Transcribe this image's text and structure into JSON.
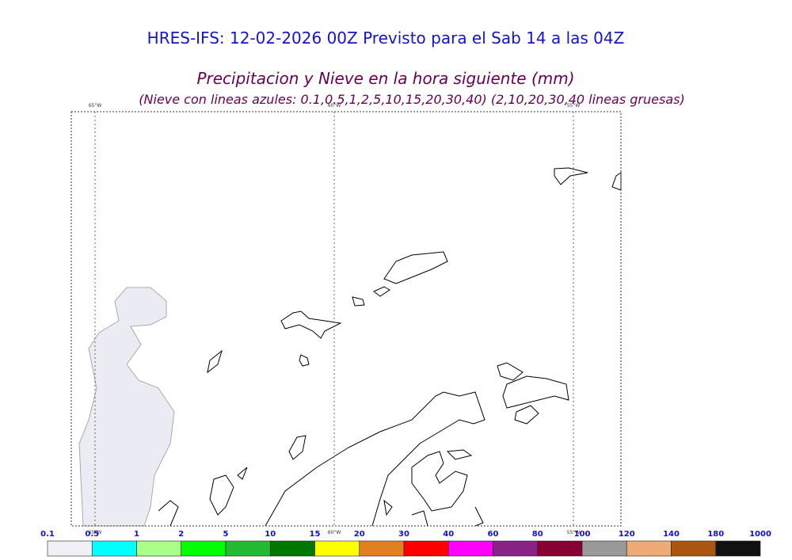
{
  "header": {
    "title": "HRES-IFS: 12-02-2026 00Z Previsto para el Sab 14 a las 04Z",
    "subtitle": "Precipitacion y Nieve en la hora siguiente (mm)",
    "note": "(Nieve con lineas azules: 0.1,0.5,1,2,5,10,15,20,30,40)  (2,10,20,30,40 lineas gruesas)"
  },
  "map": {
    "meridians": [
      "65°W",
      "60°W",
      "55°W"
    ]
  },
  "legend": {
    "items": [
      {
        "label": "0.1",
        "color": "#f0f0f6"
      },
      {
        "label": "0.5",
        "color": "#00ffff"
      },
      {
        "label": "1",
        "color": "#aaff88"
      },
      {
        "label": "2",
        "color": "#00ff00"
      },
      {
        "label": "5",
        "color": "#22bb33"
      },
      {
        "label": "10",
        "color": "#007700"
      },
      {
        "label": "15",
        "color": "#ffff00"
      },
      {
        "label": "20",
        "color": "#e08020"
      },
      {
        "label": "30",
        "color": "#ff0000"
      },
      {
        "label": "40",
        "color": "#ff00ff"
      },
      {
        "label": "60",
        "color": "#882288"
      },
      {
        "label": "80",
        "color": "#880033"
      },
      {
        "label": "100",
        "color": "#999999"
      },
      {
        "label": "120",
        "color": "#eeaa77"
      },
      {
        "label": "140",
        "color": "#aa5511"
      },
      {
        "label": "180",
        "color": "#111111"
      }
    ],
    "end_label": "1000"
  }
}
